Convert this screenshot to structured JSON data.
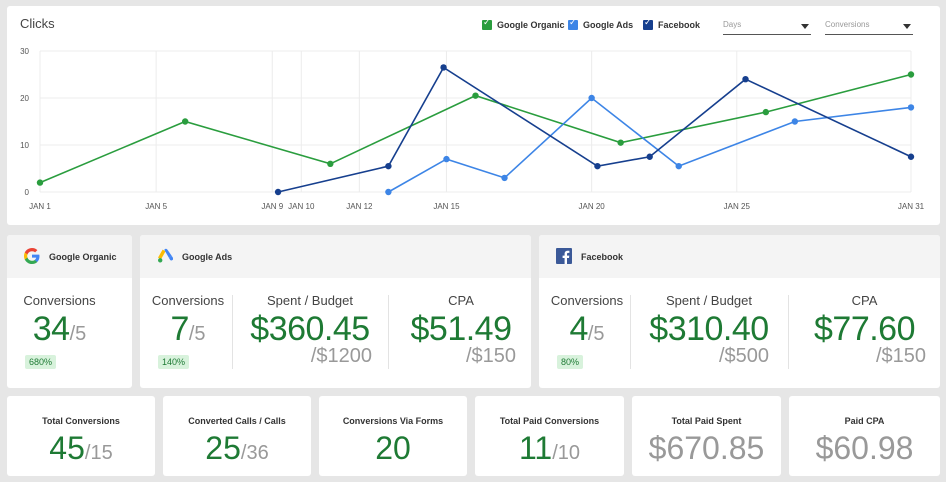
{
  "chart": {
    "title": "Clicks",
    "legend": [
      {
        "name": "Google Organic",
        "color": "#2a9d3e"
      },
      {
        "name": "Google Ads",
        "color": "#3d85e6"
      },
      {
        "name": "Facebook",
        "color": "#163f8e"
      }
    ],
    "select_days": "Days",
    "select_metric": "Conversions"
  },
  "chart_data": {
    "type": "line",
    "title": "Clicks",
    "x_ticks": [
      "JAN 1",
      "JAN 5",
      "JAN 9",
      "JAN 10",
      "JAN 12",
      "JAN 15",
      "JAN 20",
      "JAN 25",
      "JAN 31"
    ],
    "y_ticks": [
      "0",
      "10",
      "20",
      "30"
    ],
    "ylim": [
      0,
      30
    ],
    "xlim": [
      1,
      31
    ],
    "series": [
      {
        "name": "Google Organic",
        "color": "#2a9d3e",
        "points": [
          [
            1,
            2
          ],
          [
            6,
            15
          ],
          [
            11,
            6
          ],
          [
            16,
            20.5
          ],
          [
            21,
            10.5
          ],
          [
            26,
            17
          ],
          [
            31,
            25
          ]
        ]
      },
      {
        "name": "Google Ads",
        "color": "#3d85e6",
        "points": [
          [
            13,
            0
          ],
          [
            15,
            7
          ],
          [
            17,
            3
          ],
          [
            20,
            20
          ],
          [
            23,
            5.5
          ],
          [
            27,
            15
          ],
          [
            31,
            18
          ]
        ]
      },
      {
        "name": "Facebook",
        "color": "#163f8e",
        "points": [
          [
            9.2,
            0
          ],
          [
            13,
            5.5
          ],
          [
            14.9,
            26.5
          ],
          [
            20.2,
            5.5
          ],
          [
            22,
            7.5
          ],
          [
            25.3,
            24
          ],
          [
            31,
            7.5
          ]
        ]
      }
    ],
    "grid": true
  },
  "google_organic": {
    "name": "Google Organic",
    "conversions_label": "Conversions",
    "conversions": "34",
    "conversions_goal": "/5",
    "badge": "680%"
  },
  "google_ads": {
    "name": "Google Ads",
    "conversions_label": "Conversions",
    "conversions": "7",
    "conversions_goal": "/5",
    "badge": "140%",
    "spent_label": "Spent / Budget",
    "spent": "$360.45",
    "budget": "/$1200",
    "cpa_label": "CPA",
    "cpa": "$51.49",
    "cpa_goal": "/$150"
  },
  "facebook": {
    "name": "Facebook",
    "conversions_label": "Conversions",
    "conversions": "4",
    "conversions_goal": "/5",
    "badge": "80%",
    "spent_label": "Spent / Budget",
    "spent": "$310.40",
    "budget": "/$500",
    "cpa_label": "CPA",
    "cpa": "$77.60",
    "cpa_goal": "/$150"
  },
  "totals": [
    {
      "label": "Total Conversions",
      "value": "45",
      "suffix": "/15",
      "gray": false
    },
    {
      "label": "Converted Calls / Calls",
      "value": "25",
      "suffix": "/36",
      "gray": false
    },
    {
      "label": "Conversions Via Forms",
      "value": "20",
      "suffix": "",
      "gray": false
    },
    {
      "label": "Total Paid Conversions",
      "value": "11",
      "suffix": "/10",
      "gray": false
    },
    {
      "label": "Total Paid Spent",
      "value": "$670.85",
      "suffix": "",
      "gray": true
    },
    {
      "label": "Paid CPA",
      "value": "$60.98",
      "suffix": "",
      "gray": true
    }
  ]
}
